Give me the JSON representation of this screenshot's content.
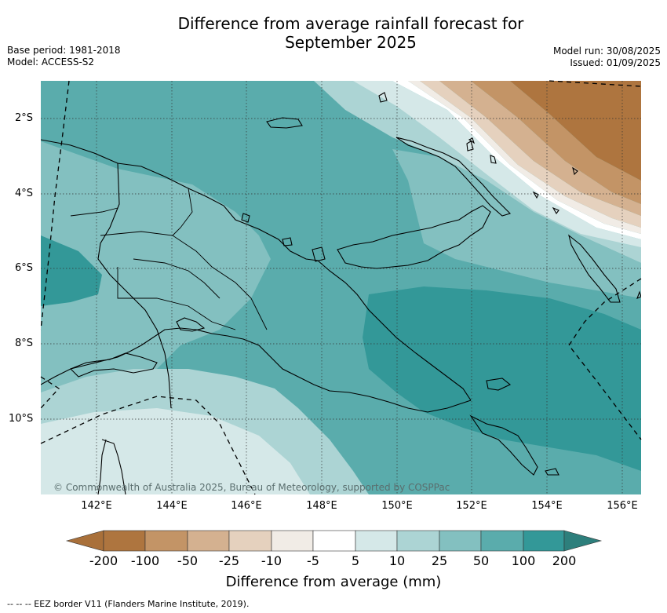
{
  "header": {
    "title_line1": "Difference from average rainfall forecast for",
    "title_line2": "September 2025",
    "base_period": "Base period: 1981-2018",
    "model": "Model: ACCESS-S2",
    "model_run": "Model run: 30/08/2025",
    "issued": "Issued: 01/09/2025"
  },
  "map": {
    "lat_labels": [
      "2°S",
      "4°S",
      "6°S",
      "8°S",
      "10°S"
    ],
    "lon_labels": [
      "142°E",
      "144°E",
      "146°E",
      "148°E",
      "150°E",
      "152°E",
      "154°E",
      "156°E"
    ],
    "credit": "© Commonwealth of Australia 2025, Bureau of Meteorology, supported by COSPPac"
  },
  "colorbar": {
    "tick_labels": [
      "-200",
      "-100",
      "-50",
      "-25",
      "-10",
      "-5",
      "5",
      "10",
      "25",
      "50",
      "100",
      "200"
    ],
    "colors": [
      "#a9703a",
      "#ae753f",
      "#c39466",
      "#d4b190",
      "#e5d1be",
      "#f1ece6",
      "#ffffff",
      "#d5e8e8",
      "#acd4d4",
      "#83c0c0",
      "#5aacac",
      "#339898",
      "#2d7f7c"
    ],
    "title": "Difference from average (mm)"
  },
  "legend": {
    "eez": "--  --  -- EEZ border V11 (Flanders Marine Institute, 2019)."
  }
}
